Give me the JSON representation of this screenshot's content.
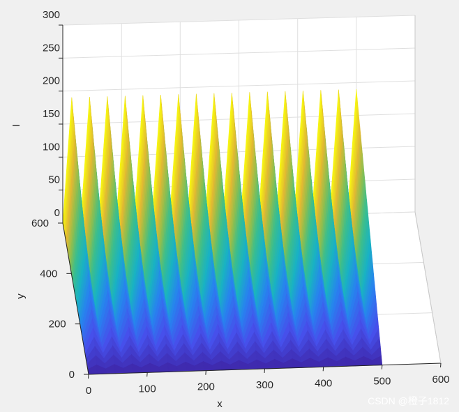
{
  "chart_data": {
    "type": "surface",
    "xlabel": "x",
    "ylabel": "y",
    "zlabel": "I",
    "xlim": [
      0,
      600
    ],
    "ylim": [
      0,
      600
    ],
    "zlim": [
      0,
      300
    ],
    "xticks": [
      "0",
      "100",
      "200",
      "300",
      "400",
      "500",
      "600"
    ],
    "yticks": [
      "0",
      "200",
      "400",
      "600"
    ],
    "zticks": [
      "0",
      "50",
      "100",
      "150",
      "200",
      "250",
      "300"
    ],
    "grid": true,
    "colormap": "parula",
    "surface": {
      "x_range": [
        0,
        500
      ],
      "y_range": [
        0,
        600
      ],
      "ridges": 17,
      "ridge_peak_I": 190,
      "trough_I": 0,
      "y_profile": "intensity falls linearly from ridge peak at y=600 toward 0 at y=0"
    },
    "colors": {
      "background": "#f0f0f0",
      "axes_face": "#ffffff",
      "grid": "#dfdfdf",
      "axis_line": "#262626",
      "colormap_low": "#3e26a8",
      "colormap_mid": "#19b2c3",
      "colormap_high": "#f9fb0e"
    }
  },
  "watermark": "CSDN @橙子1812"
}
